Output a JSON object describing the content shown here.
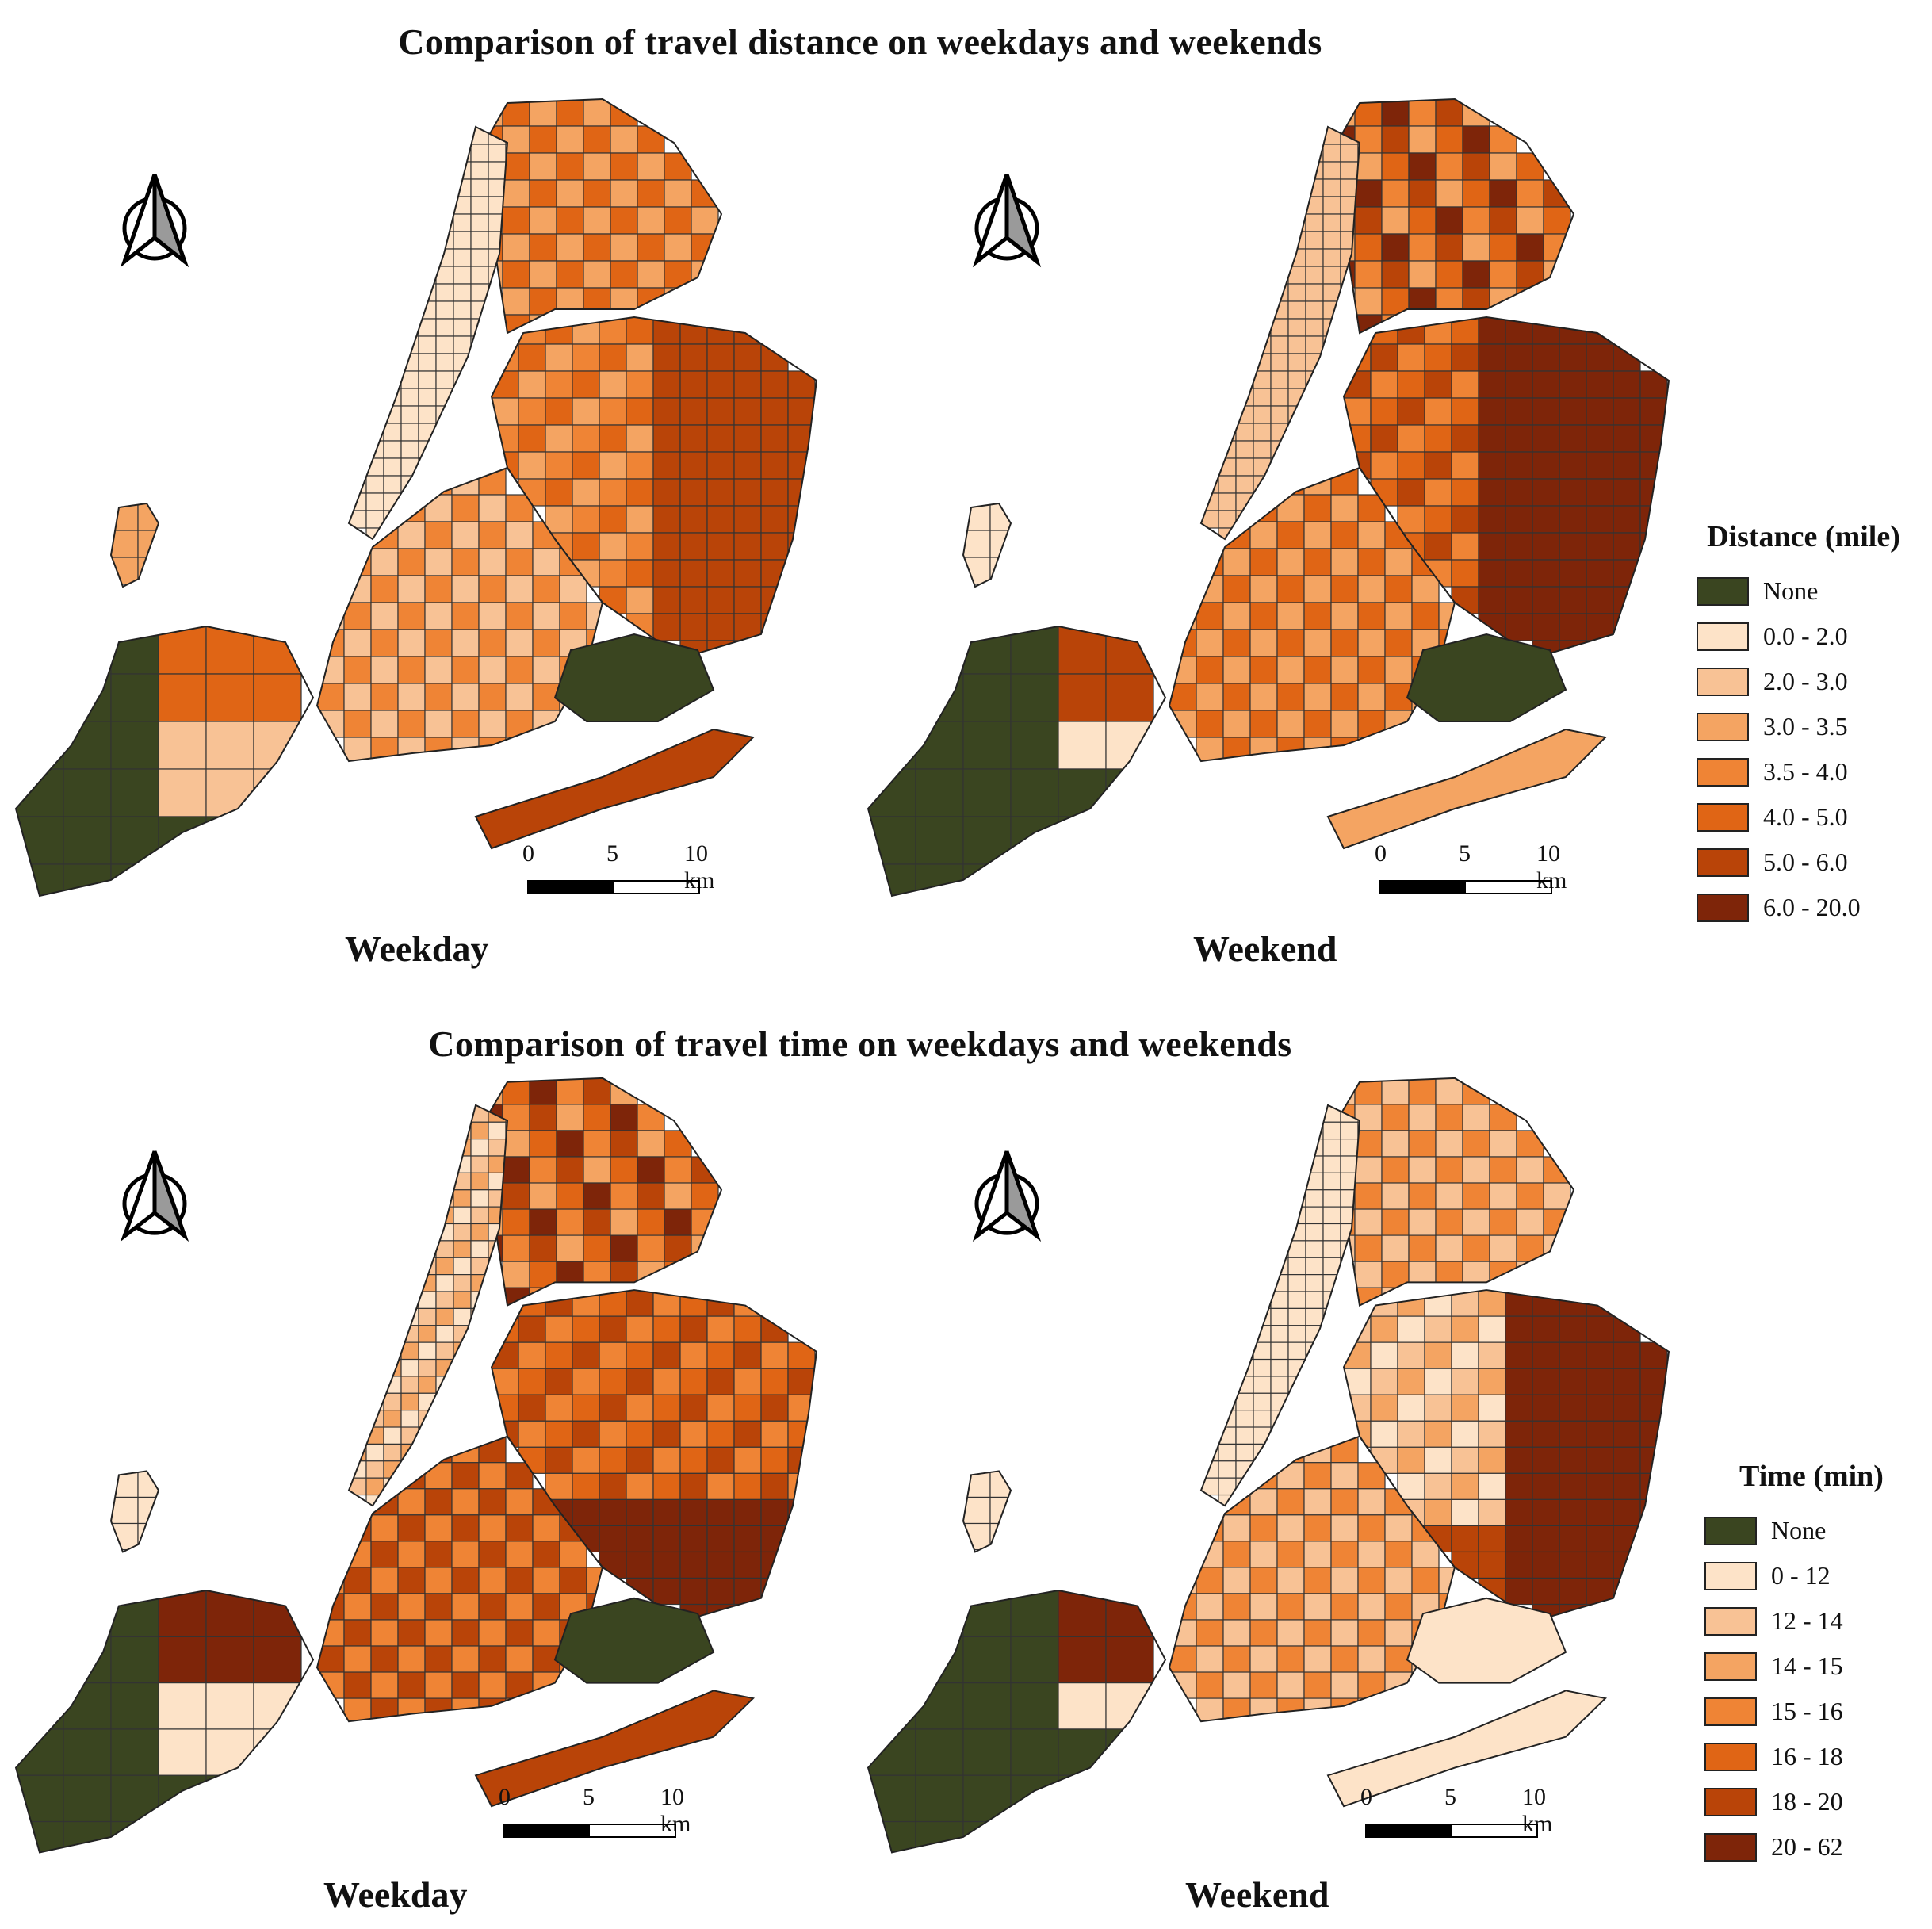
{
  "sections": [
    {
      "title": "Comparison of travel distance on weekdays and weekends",
      "panels": [
        {
          "caption": "Weekday"
        },
        {
          "caption": "Weekend"
        }
      ],
      "legend": {
        "title": "Distance (mile)",
        "classes": [
          {
            "label": "None",
            "color": "#3a4520"
          },
          {
            "label": "0.0 - 2.0",
            "color": "#fde3c8"
          },
          {
            "label": "2.0 - 3.0",
            "color": "#f8c295"
          },
          {
            "label": "3.0 - 3.5",
            "color": "#f4a462"
          },
          {
            "label": "3.5 - 4.0",
            "color": "#ef8435"
          },
          {
            "label": "4.0 - 5.0",
            "color": "#e06515"
          },
          {
            "label": "5.0 - 6.0",
            "color": "#b94408"
          },
          {
            "label": "6.0 - 20.0",
            "color": "#7e2509"
          }
        ]
      }
    },
    {
      "title": "Comparison of travel time on weekdays and weekends",
      "panels": [
        {
          "caption": "Weekday"
        },
        {
          "caption": "Weekend"
        }
      ],
      "legend": {
        "title": "Time (min)",
        "classes": [
          {
            "label": "None",
            "color": "#3a4520"
          },
          {
            "label": "0 - 12",
            "color": "#fde3c8"
          },
          {
            "label": "12 - 14",
            "color": "#f8c295"
          },
          {
            "label": "14 - 15",
            "color": "#f4a462"
          },
          {
            "label": "15 - 16",
            "color": "#ef8435"
          },
          {
            "label": "16 - 18",
            "color": "#e06515"
          },
          {
            "label": "18 - 20",
            "color": "#b94408"
          },
          {
            "label": "20 - 62",
            "color": "#7e2509"
          }
        ]
      }
    }
  ],
  "scale_bar": {
    "ticks": [
      "0",
      "5",
      "10 km"
    ]
  },
  "map_icons": {
    "north_arrow": "north-arrow-icon"
  }
}
